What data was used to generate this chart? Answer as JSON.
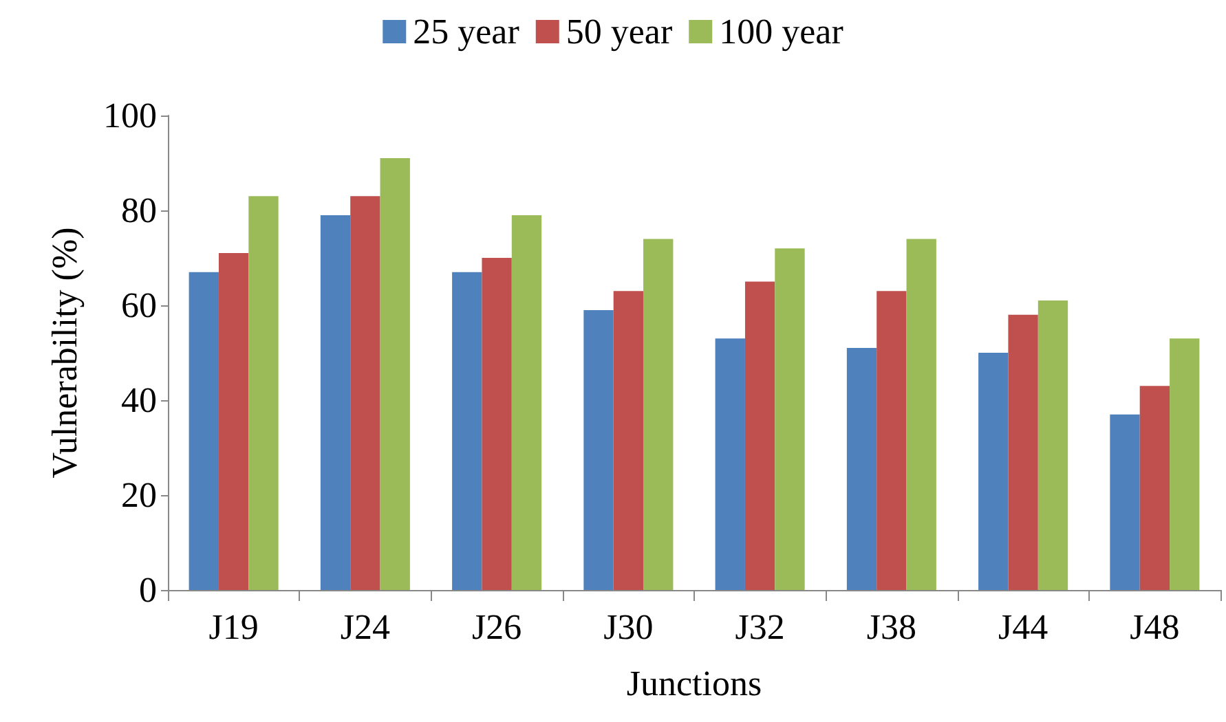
{
  "chart_data": {
    "type": "bar",
    "xlabel": "Junctions",
    "ylabel": "Vulnerability (%)",
    "categories": [
      "J19",
      "J24",
      "J26",
      "J30",
      "J32",
      "J38",
      "J44",
      "J48"
    ],
    "series": [
      {
        "name": "25 year",
        "color": "#4f81bd",
        "values": [
          67,
          79,
          67,
          59,
          53,
          51,
          50,
          37
        ]
      },
      {
        "name": "50 year",
        "color": "#c0504d",
        "values": [
          71,
          83,
          70,
          63,
          65,
          63,
          58,
          43
        ]
      },
      {
        "name": "100 year",
        "color": "#9bbb59",
        "values": [
          83,
          91,
          79,
          74,
          72,
          74,
          61,
          53
        ]
      }
    ],
    "ylim": [
      0,
      100
    ],
    "yticks": [
      0,
      20,
      40,
      60,
      80,
      100
    ],
    "grid": false,
    "legend": "top"
  }
}
